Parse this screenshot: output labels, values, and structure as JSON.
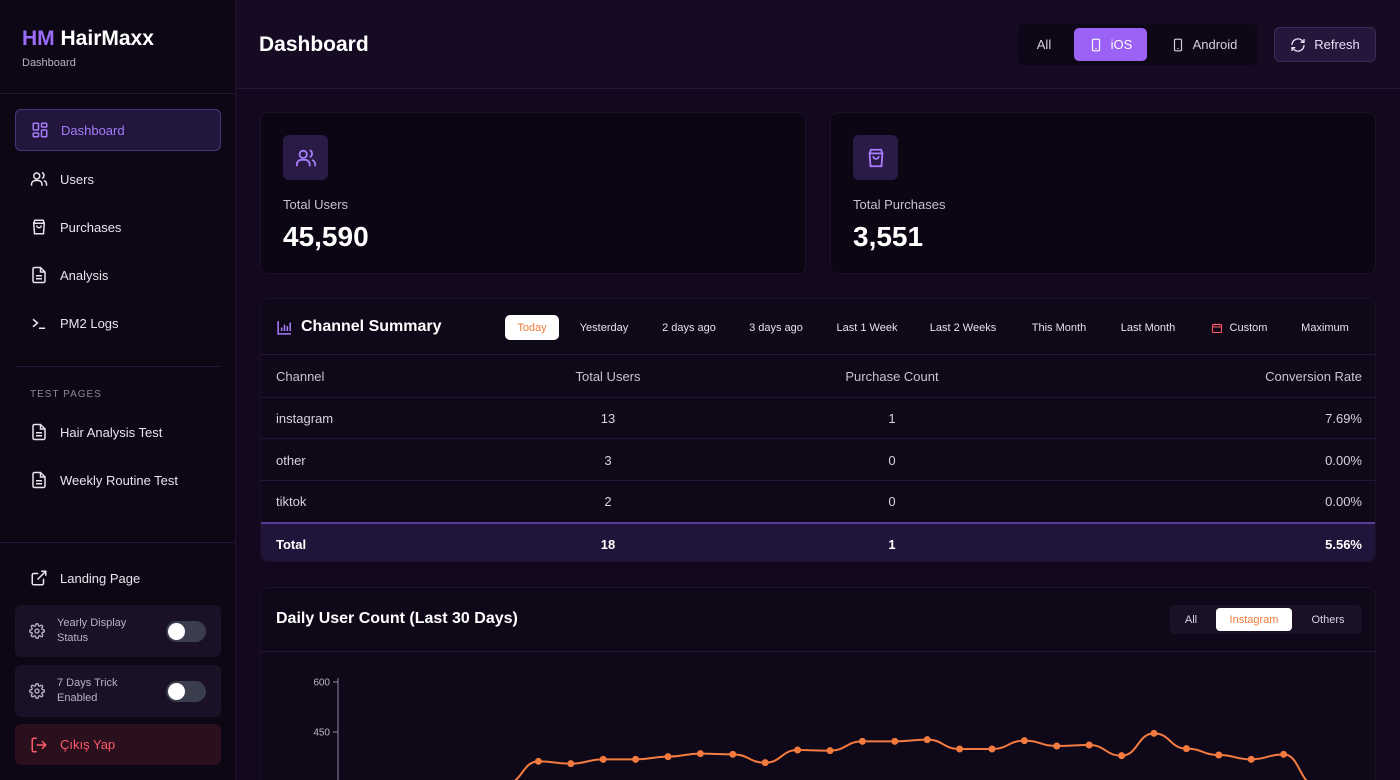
{
  "brand": {
    "hm": "HM",
    "name": "HairMaxx",
    "subtitle": "Dashboard"
  },
  "sidebar": {
    "items": [
      {
        "label": "Dashboard",
        "icon": "grid-icon",
        "active": true
      },
      {
        "label": "Users",
        "icon": "users-icon"
      },
      {
        "label": "Purchases",
        "icon": "bag-icon"
      },
      {
        "label": "Analysis",
        "icon": "document-icon"
      },
      {
        "label": "PM2 Logs",
        "icon": "terminal-icon"
      }
    ],
    "section_label": "TEST PAGES",
    "test_items": [
      {
        "label": "Hair Analysis Test",
        "icon": "document-icon"
      },
      {
        "label": "Weekly Routine Test",
        "icon": "document-icon"
      }
    ],
    "landing": {
      "label": "Landing Page",
      "icon": "external-link-icon"
    },
    "toggles": [
      {
        "label": "Yearly Display Status",
        "icon": "gear-icon",
        "enabled": false
      },
      {
        "label": "7 Days Trick Enabled",
        "icon": "gear-icon",
        "enabled": false
      }
    ],
    "logout": {
      "label": "Çıkış Yap",
      "icon": "logout-icon",
      "color": "#ff5b6b"
    }
  },
  "header": {
    "title": "Dashboard",
    "platforms": [
      {
        "label": "All"
      },
      {
        "label": "iOS",
        "icon": "phone-icon",
        "active": true
      },
      {
        "label": "Android",
        "icon": "phone-icon"
      }
    ],
    "refresh_label": "Refresh",
    "accent": "#9b62f5"
  },
  "stats": [
    {
      "label": "Total Users",
      "value": "45,590",
      "icon": "users-icon"
    },
    {
      "label": "Total Purchases",
      "value": "3,551",
      "icon": "bag-icon"
    }
  ],
  "channel_summary": {
    "title": "Channel Summary",
    "ranges": [
      {
        "label": "Today",
        "active": true
      },
      {
        "label": "Yesterday"
      },
      {
        "label": "2 days ago"
      },
      {
        "label": "3 days ago"
      },
      {
        "label": "Last 1 Week"
      },
      {
        "label": "Last 2 Weeks"
      },
      {
        "label": "This Month"
      },
      {
        "label": "Last Month"
      },
      {
        "label": "Custom",
        "icon": "calendar-icon"
      },
      {
        "label": "Maximum"
      }
    ],
    "columns": [
      "Channel",
      "Total Users",
      "Purchase Count",
      "Conversion Rate"
    ],
    "rows": [
      [
        "instagram",
        "13",
        "1",
        "7.69%"
      ],
      [
        "other",
        "3",
        "0",
        "0.00%"
      ],
      [
        "tiktok",
        "2",
        "0",
        "0.00%"
      ]
    ],
    "total": [
      "Total",
      "18",
      "1",
      "5.56%"
    ]
  },
  "daily_chart": {
    "title": "Daily User Count (Last 30 Days)",
    "filters": [
      {
        "label": "All"
      },
      {
        "label": "Instagram",
        "active": true
      },
      {
        "label": "Others"
      }
    ],
    "line_color": "#f47b3f"
  },
  "chart_data": {
    "type": "line",
    "title": "Daily User Count (Last 30 Days)",
    "ylim": [
      300,
      600
    ],
    "yticks": [
      "600",
      "450"
    ],
    "series": [
      {
        "values": [
          295,
          362,
          355,
          368,
          368,
          376,
          385,
          383,
          358,
          396,
          394,
          422,
          422,
          427,
          399,
          399,
          424,
          408,
          411,
          379,
          446,
          400,
          381,
          368,
          383,
          290
        ]
      }
    ]
  }
}
